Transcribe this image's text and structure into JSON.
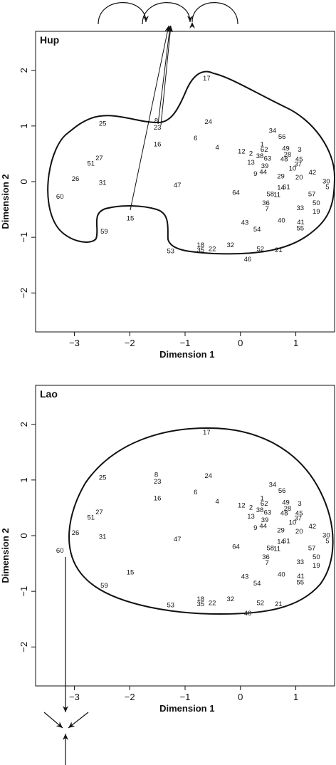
{
  "chart_data": [
    {
      "type": "scatter",
      "title": "Hup",
      "xlabel": "Dimension 1",
      "ylabel": "Dimension 2",
      "xlim": [
        -3.7,
        1.7
      ],
      "ylim": [
        -2.7,
        2.7
      ],
      "xticks": [
        "-3",
        "-2",
        "-1",
        "0",
        "1"
      ],
      "yticks": [
        "-2",
        "-1",
        "0",
        "1",
        "2"
      ],
      "grid": false,
      "points": [
        {
          "label": "1",
          "x": 0.39,
          "y": 0.68
        },
        {
          "label": "2",
          "x": 0.19,
          "y": 0.51
        },
        {
          "label": "3",
          "x": 1.07,
          "y": 0.58
        },
        {
          "label": "4",
          "x": -0.42,
          "y": 0.62
        },
        {
          "label": "5",
          "x": 1.57,
          "y": -0.09
        },
        {
          "label": "6",
          "x": -0.81,
          "y": 0.79
        },
        {
          "label": "7",
          "x": 0.48,
          "y": -0.48
        },
        {
          "label": "8",
          "x": -1.52,
          "y": 1.1
        },
        {
          "label": "9",
          "x": 0.27,
          "y": 0.15
        },
        {
          "label": "10",
          "x": 0.94,
          "y": 0.24
        },
        {
          "label": "11",
          "x": 0.66,
          "y": -0.23
        },
        {
          "label": "12",
          "x": 0.02,
          "y": 0.55
        },
        {
          "label": "13",
          "x": 0.19,
          "y": 0.35
        },
        {
          "label": "14",
          "x": 0.73,
          "y": -0.1
        },
        {
          "label": "15",
          "x": -1.99,
          "y": -0.65
        },
        {
          "label": "16",
          "x": -1.5,
          "y": 0.68
        },
        {
          "label": "17",
          "x": -0.61,
          "y": 1.86
        },
        {
          "label": "18",
          "x": -0.72,
          "y": -1.13
        },
        {
          "label": "19",
          "x": 1.37,
          "y": -0.53
        },
        {
          "label": "20",
          "x": 1.06,
          "y": 0.08
        },
        {
          "label": "21",
          "x": 0.69,
          "y": -1.22
        },
        {
          "label": "22",
          "x": -0.51,
          "y": -1.2
        },
        {
          "label": "23",
          "x": -1.5,
          "y": 0.98
        },
        {
          "label": "24",
          "x": -0.58,
          "y": 1.08
        },
        {
          "label": "25",
          "x": -2.49,
          "y": 1.05
        },
        {
          "label": "26",
          "x": -2.98,
          "y": 0.06
        },
        {
          "label": "27",
          "x": -2.55,
          "y": 0.43
        },
        {
          "label": "28",
          "x": 0.85,
          "y": 0.49
        },
        {
          "label": "29",
          "x": 0.73,
          "y": 0.1
        },
        {
          "label": "30",
          "x": 1.55,
          "y": 0.01
        },
        {
          "label": "31",
          "x": -2.49,
          "y": -0.01
        },
        {
          "label": "32",
          "x": -0.18,
          "y": -1.13
        },
        {
          "label": "33",
          "x": 1.08,
          "y": -0.47
        },
        {
          "label": "34",
          "x": 0.58,
          "y": 0.92
        },
        {
          "label": "35",
          "x": -0.72,
          "y": -1.22
        },
        {
          "label": "36",
          "x": 0.46,
          "y": -0.38
        },
        {
          "label": "37",
          "x": 1.04,
          "y": 0.32
        },
        {
          "label": "38",
          "x": 0.35,
          "y": 0.47
        },
        {
          "label": "39",
          "x": 0.44,
          "y": 0.29
        },
        {
          "label": "40",
          "x": 0.74,
          "y": -0.69
        },
        {
          "label": "41",
          "x": 1.09,
          "y": -0.72
        },
        {
          "label": "42",
          "x": 1.3,
          "y": 0.17
        },
        {
          "label": "43",
          "x": 0.08,
          "y": -0.73
        },
        {
          "label": "44",
          "x": 0.41,
          "y": 0.18
        },
        {
          "label": "45",
          "x": 1.06,
          "y": 0.41
        },
        {
          "label": "46",
          "x": 0.13,
          "y": -1.39
        },
        {
          "label": "47",
          "x": -1.14,
          "y": -0.06
        },
        {
          "label": "48",
          "x": 0.79,
          "y": 0.41
        },
        {
          "label": "49",
          "x": 0.82,
          "y": 0.6
        },
        {
          "label": "50",
          "x": 1.37,
          "y": -0.38
        },
        {
          "label": "51",
          "x": -2.7,
          "y": 0.33
        },
        {
          "label": "52",
          "x": 0.36,
          "y": -1.2
        },
        {
          "label": "53",
          "x": -1.26,
          "y": -1.24
        },
        {
          "label": "54",
          "x": 0.3,
          "y": -0.85
        },
        {
          "label": "55",
          "x": 1.08,
          "y": -0.83
        },
        {
          "label": "56",
          "x": 0.75,
          "y": 0.81
        },
        {
          "label": "57",
          "x": 1.29,
          "y": -0.22
        },
        {
          "label": "58",
          "x": 0.54,
          "y": -0.22
        },
        {
          "label": "59",
          "x": -2.46,
          "y": -0.89
        },
        {
          "label": "60",
          "x": -3.26,
          "y": -0.26
        },
        {
          "label": "61",
          "x": 0.83,
          "y": -0.09
        },
        {
          "label": "62",
          "x": 0.43,
          "y": 0.58
        },
        {
          "label": "63",
          "x": 0.49,
          "y": 0.42
        },
        {
          "label": "64",
          "x": -0.08,
          "y": -0.19
        }
      ]
    },
    {
      "type": "scatter",
      "title": "Lao",
      "xlabel": "Dimension 1",
      "ylabel": "Dimension 2",
      "xlim": [
        -3.7,
        1.7
      ],
      "ylim": [
        -2.7,
        2.7
      ],
      "xticks": [
        "-3",
        "-2",
        "-1",
        "0",
        "1"
      ],
      "yticks": [
        "-2",
        "-1",
        "0",
        "1",
        "2"
      ],
      "grid": false,
      "points": "same as Hup"
    }
  ]
}
